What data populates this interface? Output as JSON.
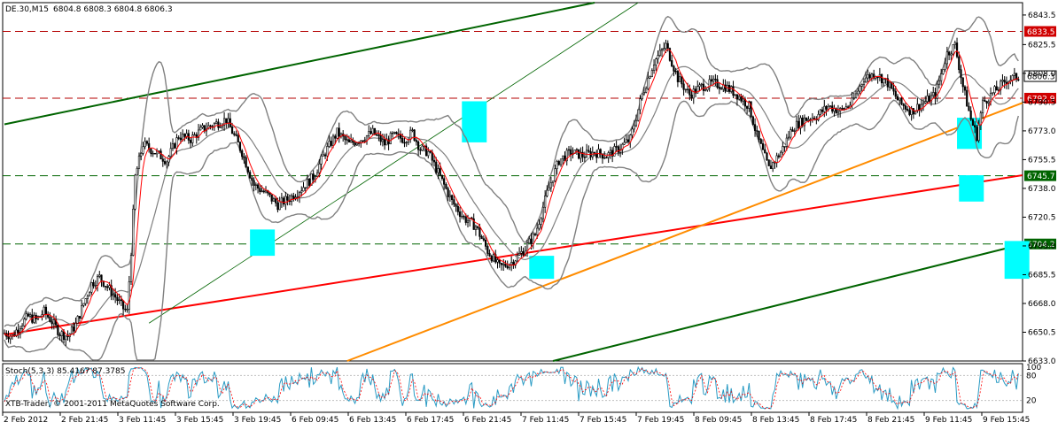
{
  "header": {
    "symbol_timeframe": "DE.30,M15",
    "ohlc": "6804.8 6808.3 6804.8 6806.3"
  },
  "colors": {
    "background": "#ffffff",
    "candles": "#000000",
    "bollinger": "#808080",
    "ma_red": "#ff0000",
    "resistance_dash": "#b40000",
    "support_dash": "#006400",
    "channel_green": "#006400",
    "trend_red": "#ff0000",
    "trend_orange": "#ff8c00",
    "highlight": "#00ffff",
    "stoch_main": "#2a9bc4",
    "stoch_signal": "#ff0000"
  },
  "chart_data": [
    {
      "type": "candlestick",
      "ylim": [
        6633.0,
        6851.0
      ],
      "ytick_labels": [
        "6843.5",
        "6825.5",
        "6808.0",
        "6790.5",
        "6773.0",
        "6755.5",
        "6738.0",
        "6720.5",
        "6703.0",
        "6685.5",
        "6668.0",
        "6650.5",
        "6633.0"
      ],
      "xtick_labels": [
        "2 Feb 2012",
        "2 Feb 21:45",
        "3 Feb 11:45",
        "3 Feb 15:45",
        "3 Feb 19:45",
        "6 Feb 09:45",
        "6 Feb 13:45",
        "6 Feb 17:45",
        "6 Feb 21:45",
        "7 Feb 11:45",
        "7 Feb 15:45",
        "7 Feb 19:45",
        "8 Feb 09:45",
        "8 Feb 13:45",
        "8 Feb 17:45",
        "8 Feb 21:45",
        "9 Feb 11:45",
        "9 Feb 15:45"
      ],
      "horizontal_levels": [
        {
          "value": 6833.5,
          "label": "6833.5",
          "kind": "resistance"
        },
        {
          "value": 6792.9,
          "label": "6792.9",
          "kind": "resistance"
        },
        {
          "value": 6745.7,
          "label": "6745.7",
          "kind": "support"
        },
        {
          "value": 6704.2,
          "label": "6704.2",
          "kind": "support"
        }
      ],
      "current_price": {
        "value": 6806.3,
        "label": "6806.3"
      },
      "close_path": [
        [
          0,
          6650
        ],
        [
          4,
          6648
        ],
        [
          8,
          6655
        ],
        [
          12,
          6660
        ],
        [
          16,
          6658
        ],
        [
          20,
          6663
        ],
        [
          24,
          6657
        ],
        [
          28,
          6650
        ],
        [
          32,
          6648
        ],
        [
          36,
          6655
        ],
        [
          40,
          6668
        ],
        [
          44,
          6680
        ],
        [
          48,
          6684
        ],
        [
          52,
          6678
        ],
        [
          56,
          6672
        ],
        [
          60,
          6665
        ],
        [
          62,
          6663
        ],
        [
          64,
          6700
        ],
        [
          66,
          6745
        ],
        [
          70,
          6765
        ],
        [
          76,
          6760
        ],
        [
          82,
          6755
        ],
        [
          88,
          6770
        ],
        [
          94,
          6768
        ],
        [
          100,
          6774
        ],
        [
          106,
          6777
        ],
        [
          112,
          6780
        ],
        [
          116,
          6770
        ],
        [
          120,
          6760
        ],
        [
          126,
          6740
        ],
        [
          132,
          6735
        ],
        [
          138,
          6728
        ],
        [
          144,
          6732
        ],
        [
          150,
          6738
        ],
        [
          156,
          6745
        ],
        [
          162,
          6760
        ],
        [
          168,
          6772
        ],
        [
          174,
          6765
        ],
        [
          180,
          6768
        ],
        [
          186,
          6772
        ],
        [
          192,
          6765
        ],
        [
          196,
          6770
        ],
        [
          202,
          6768
        ],
        [
          206,
          6772
        ],
        [
          210,
          6762
        ],
        [
          214,
          6760
        ],
        [
          220,
          6745
        ],
        [
          226,
          6730
        ],
        [
          232,
          6720
        ],
        [
          238,
          6715
        ],
        [
          244,
          6700
        ],
        [
          250,
          6690
        ],
        [
          256,
          6693
        ],
        [
          262,
          6700
        ],
        [
          268,
          6710
        ],
        [
          274,
          6735
        ],
        [
          280,
          6755
        ],
        [
          286,
          6760
        ],
        [
          292,
          6758
        ],
        [
          298,
          6760
        ],
        [
          304,
          6758
        ],
        [
          310,
          6762
        ],
        [
          316,
          6768
        ],
        [
          322,
          6795
        ],
        [
          328,
          6815
        ],
        [
          334,
          6825
        ],
        [
          340,
          6805
        ],
        [
          346,
          6795
        ],
        [
          352,
          6800
        ],
        [
          358,
          6802
        ],
        [
          364,
          6800
        ],
        [
          370,
          6795
        ],
        [
          376,
          6788
        ],
        [
          380,
          6770
        ],
        [
          386,
          6750
        ],
        [
          392,
          6760
        ],
        [
          398,
          6775
        ],
        [
          404,
          6780
        ],
        [
          410,
          6782
        ],
        [
          416,
          6788
        ],
        [
          422,
          6785
        ],
        [
          428,
          6790
        ],
        [
          434,
          6805
        ],
        [
          440,
          6808
        ],
        [
          446,
          6802
        ],
        [
          452,
          6790
        ],
        [
          458,
          6785
        ],
        [
          464,
          6790
        ],
        [
          470,
          6795
        ],
        [
          476,
          6820
        ],
        [
          480,
          6825
        ],
        [
          484,
          6800
        ],
        [
          488,
          6780
        ],
        [
          491,
          6770
        ],
        [
          494,
          6790
        ],
        [
          500,
          6797
        ],
        [
          506,
          6804
        ],
        [
          512,
          6806
        ]
      ],
      "indicators": [
        "Bollinger Bands",
        "Moving Average"
      ]
    },
    {
      "type": "line",
      "title": "Stoch(5,3,3) 85.4167 87.3785",
      "ylim": [
        0,
        100
      ],
      "ytick_labels": [
        "100",
        "80",
        "20"
      ],
      "series": [
        {
          "values": [
            85.4167
          ]
        },
        {
          "values": [
            87.3785
          ]
        }
      ]
    }
  ],
  "footer": {
    "copyright": "XTB-Trader, © 2001-2011 MetaQuotes Software Corp."
  }
}
